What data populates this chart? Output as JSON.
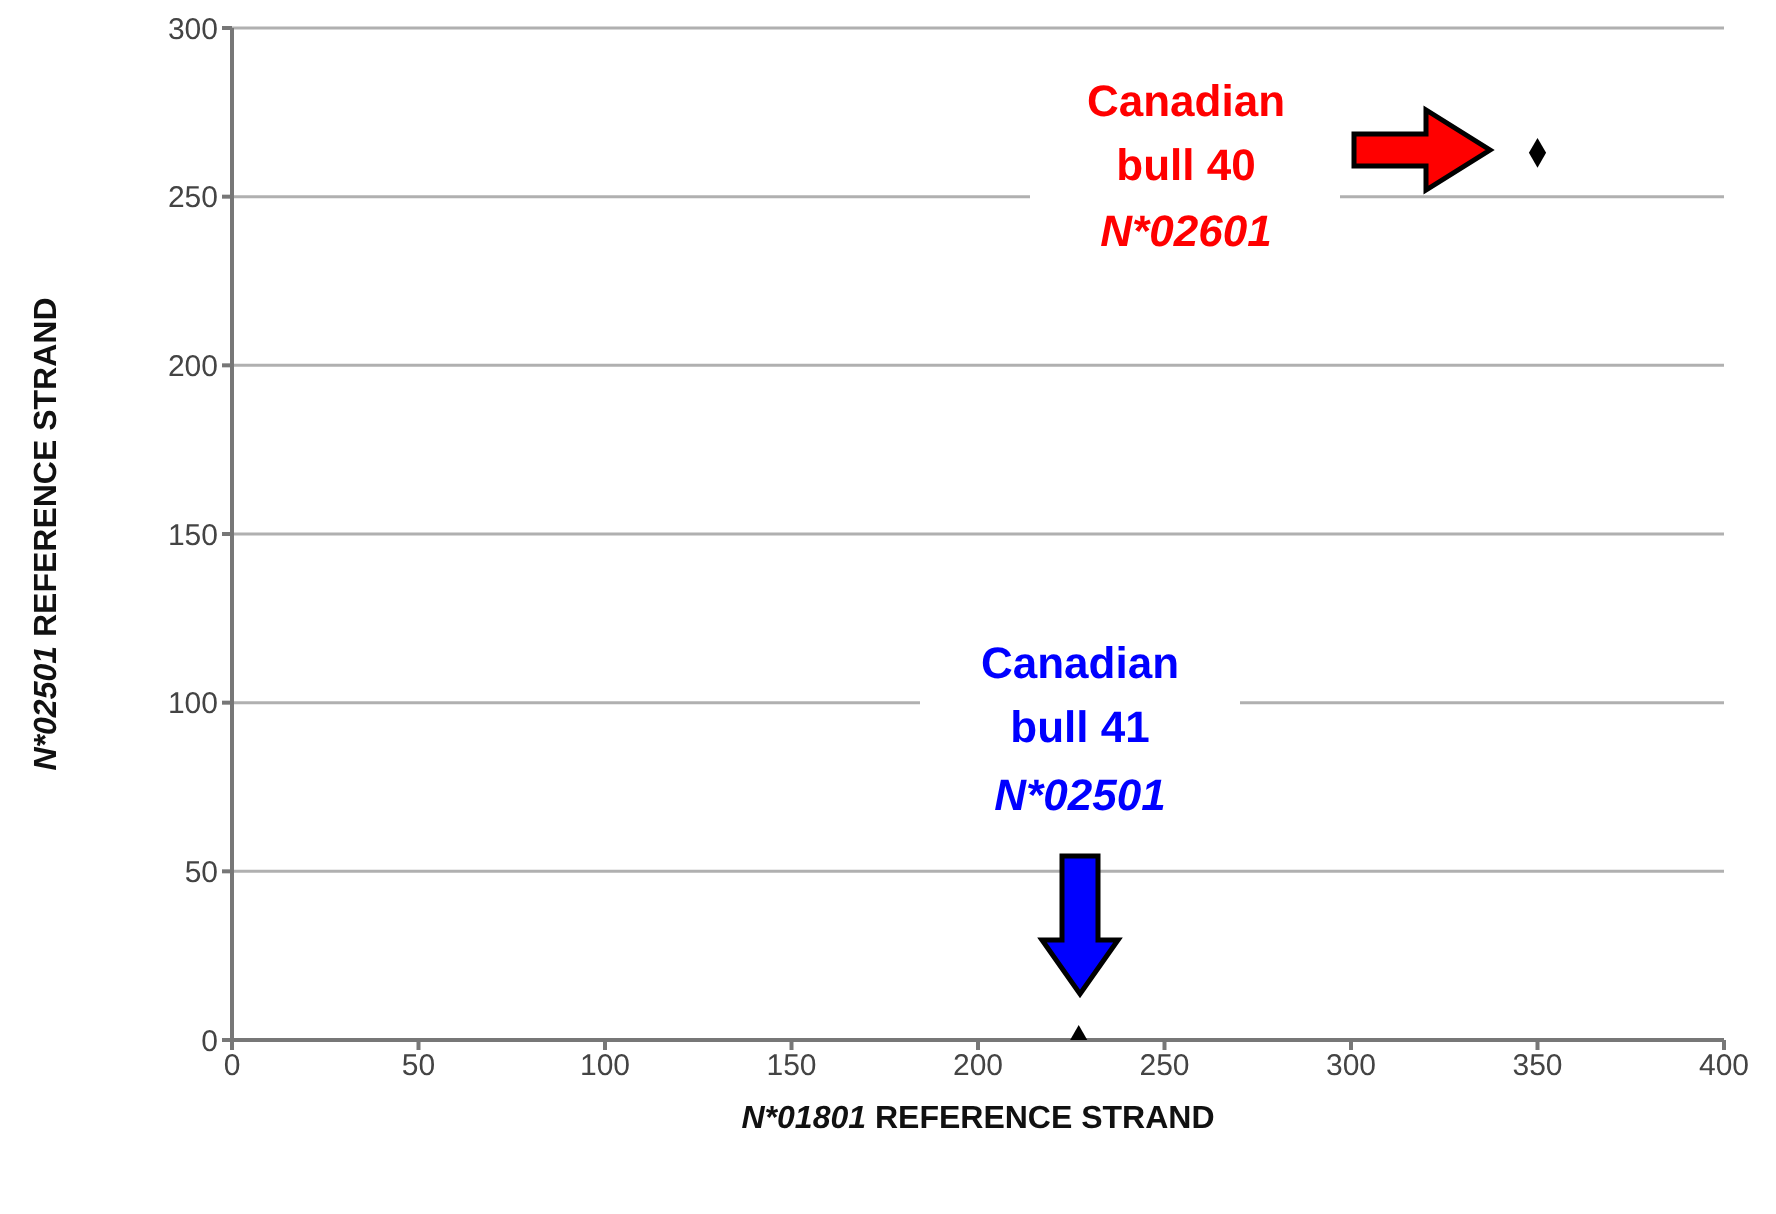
{
  "chart_data": {
    "type": "scatter",
    "xlabel": "N*01801 REFERENCE STRAND",
    "ylabel": "N*02501 REFERENCE STRAND",
    "series": [
      {
        "color": "#000000",
        "x": [
          350,
          227
        ],
        "values": [
          263,
          0
        ]
      }
    ],
    "xlim": [
      0,
      400
    ],
    "xticks": [
      0,
      50,
      100,
      150,
      200,
      250,
      300,
      350,
      400
    ],
    "ylim": [
      0,
      300
    ],
    "yticks": [
      0,
      50,
      100,
      150,
      200,
      250,
      300
    ],
    "grid": "y",
    "legend": false,
    "marker": "diamond",
    "annotations": [
      "Canadian\nbull 40\nN*02601",
      "Canadian\nbull 41\nN*02501"
    ]
  }
}
